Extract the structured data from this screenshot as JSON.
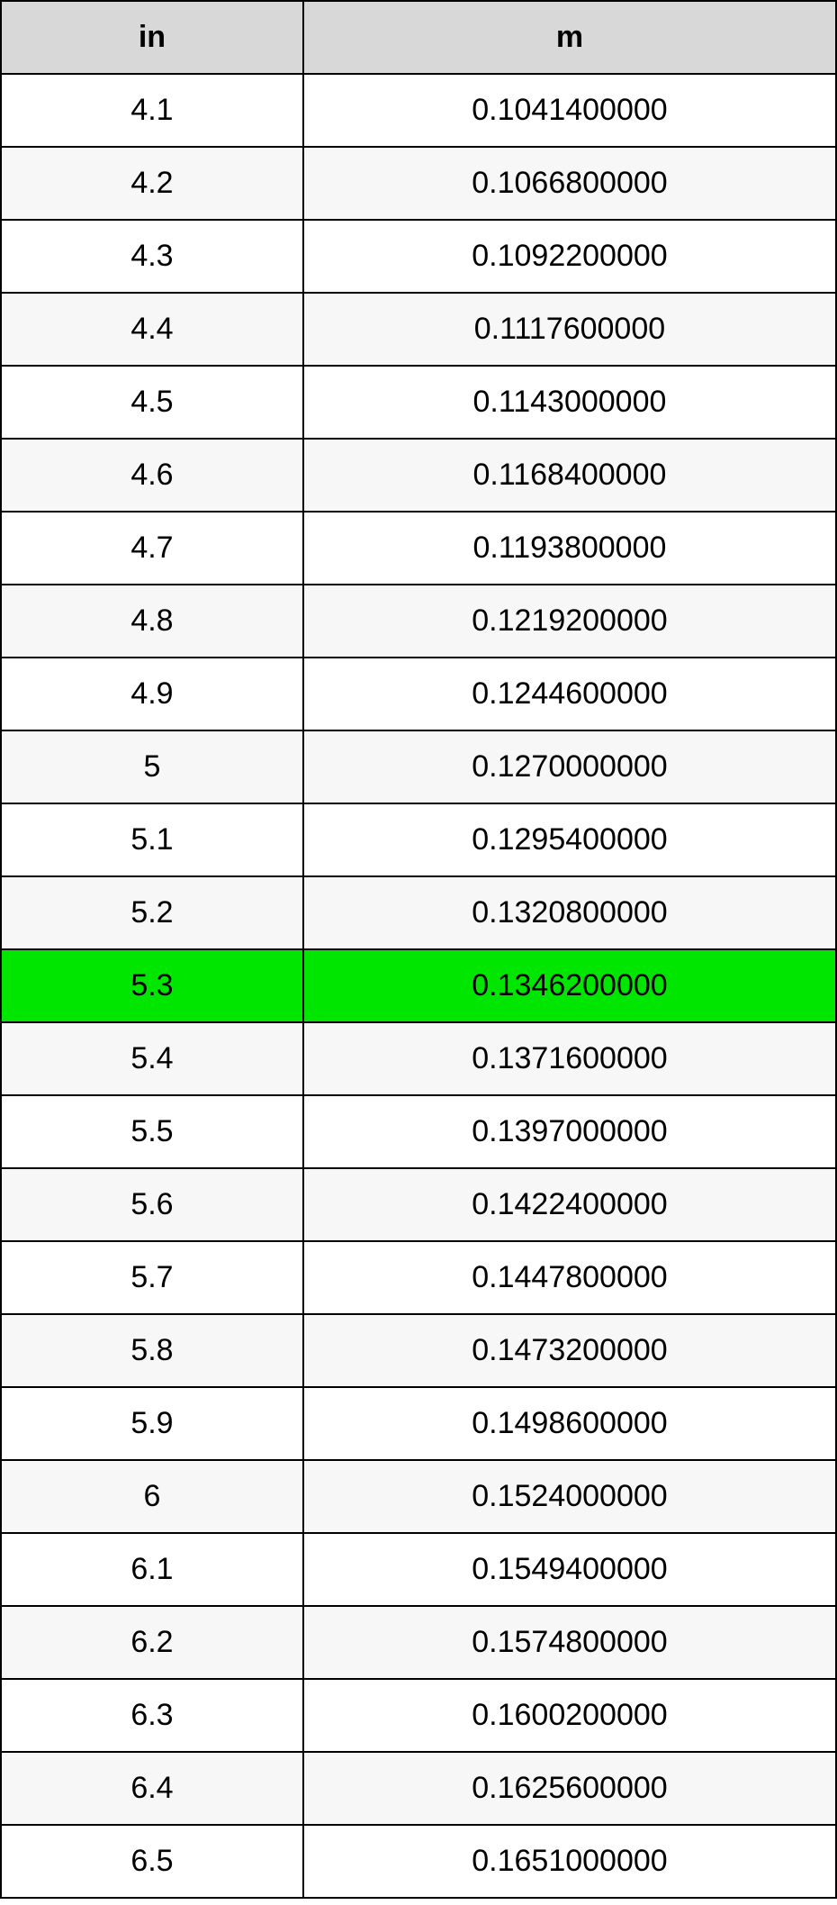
{
  "table": {
    "type": "table",
    "header_bg": "#d8d8d8",
    "row_bg_even": "#ffffff",
    "row_bg_odd": "#f7f7f7",
    "highlight_bg": "#00e600",
    "border_color": "#000000",
    "text_color": "#000000",
    "font_size": 34,
    "columns": [
      {
        "label": "in",
        "width_pct": 36.2,
        "align": "center"
      },
      {
        "label": "m",
        "width_pct": 63.8,
        "align": "center"
      }
    ],
    "highlight_index": 12,
    "rows": [
      {
        "in": "4.1",
        "m": "0.1041400000"
      },
      {
        "in": "4.2",
        "m": "0.1066800000"
      },
      {
        "in": "4.3",
        "m": "0.1092200000"
      },
      {
        "in": "4.4",
        "m": "0.1117600000"
      },
      {
        "in": "4.5",
        "m": "0.1143000000"
      },
      {
        "in": "4.6",
        "m": "0.1168400000"
      },
      {
        "in": "4.7",
        "m": "0.1193800000"
      },
      {
        "in": "4.8",
        "m": "0.1219200000"
      },
      {
        "in": "4.9",
        "m": "0.1244600000"
      },
      {
        "in": "5",
        "m": "0.1270000000"
      },
      {
        "in": "5.1",
        "m": "0.1295400000"
      },
      {
        "in": "5.2",
        "m": "0.1320800000"
      },
      {
        "in": "5.3",
        "m": "0.1346200000"
      },
      {
        "in": "5.4",
        "m": "0.1371600000"
      },
      {
        "in": "5.5",
        "m": "0.1397000000"
      },
      {
        "in": "5.6",
        "m": "0.1422400000"
      },
      {
        "in": "5.7",
        "m": "0.1447800000"
      },
      {
        "in": "5.8",
        "m": "0.1473200000"
      },
      {
        "in": "5.9",
        "m": "0.1498600000"
      },
      {
        "in": "6",
        "m": "0.1524000000"
      },
      {
        "in": "6.1",
        "m": "0.1549400000"
      },
      {
        "in": "6.2",
        "m": "0.1574800000"
      },
      {
        "in": "6.3",
        "m": "0.1600200000"
      },
      {
        "in": "6.4",
        "m": "0.1625600000"
      },
      {
        "in": "6.5",
        "m": "0.1651000000"
      }
    ]
  }
}
